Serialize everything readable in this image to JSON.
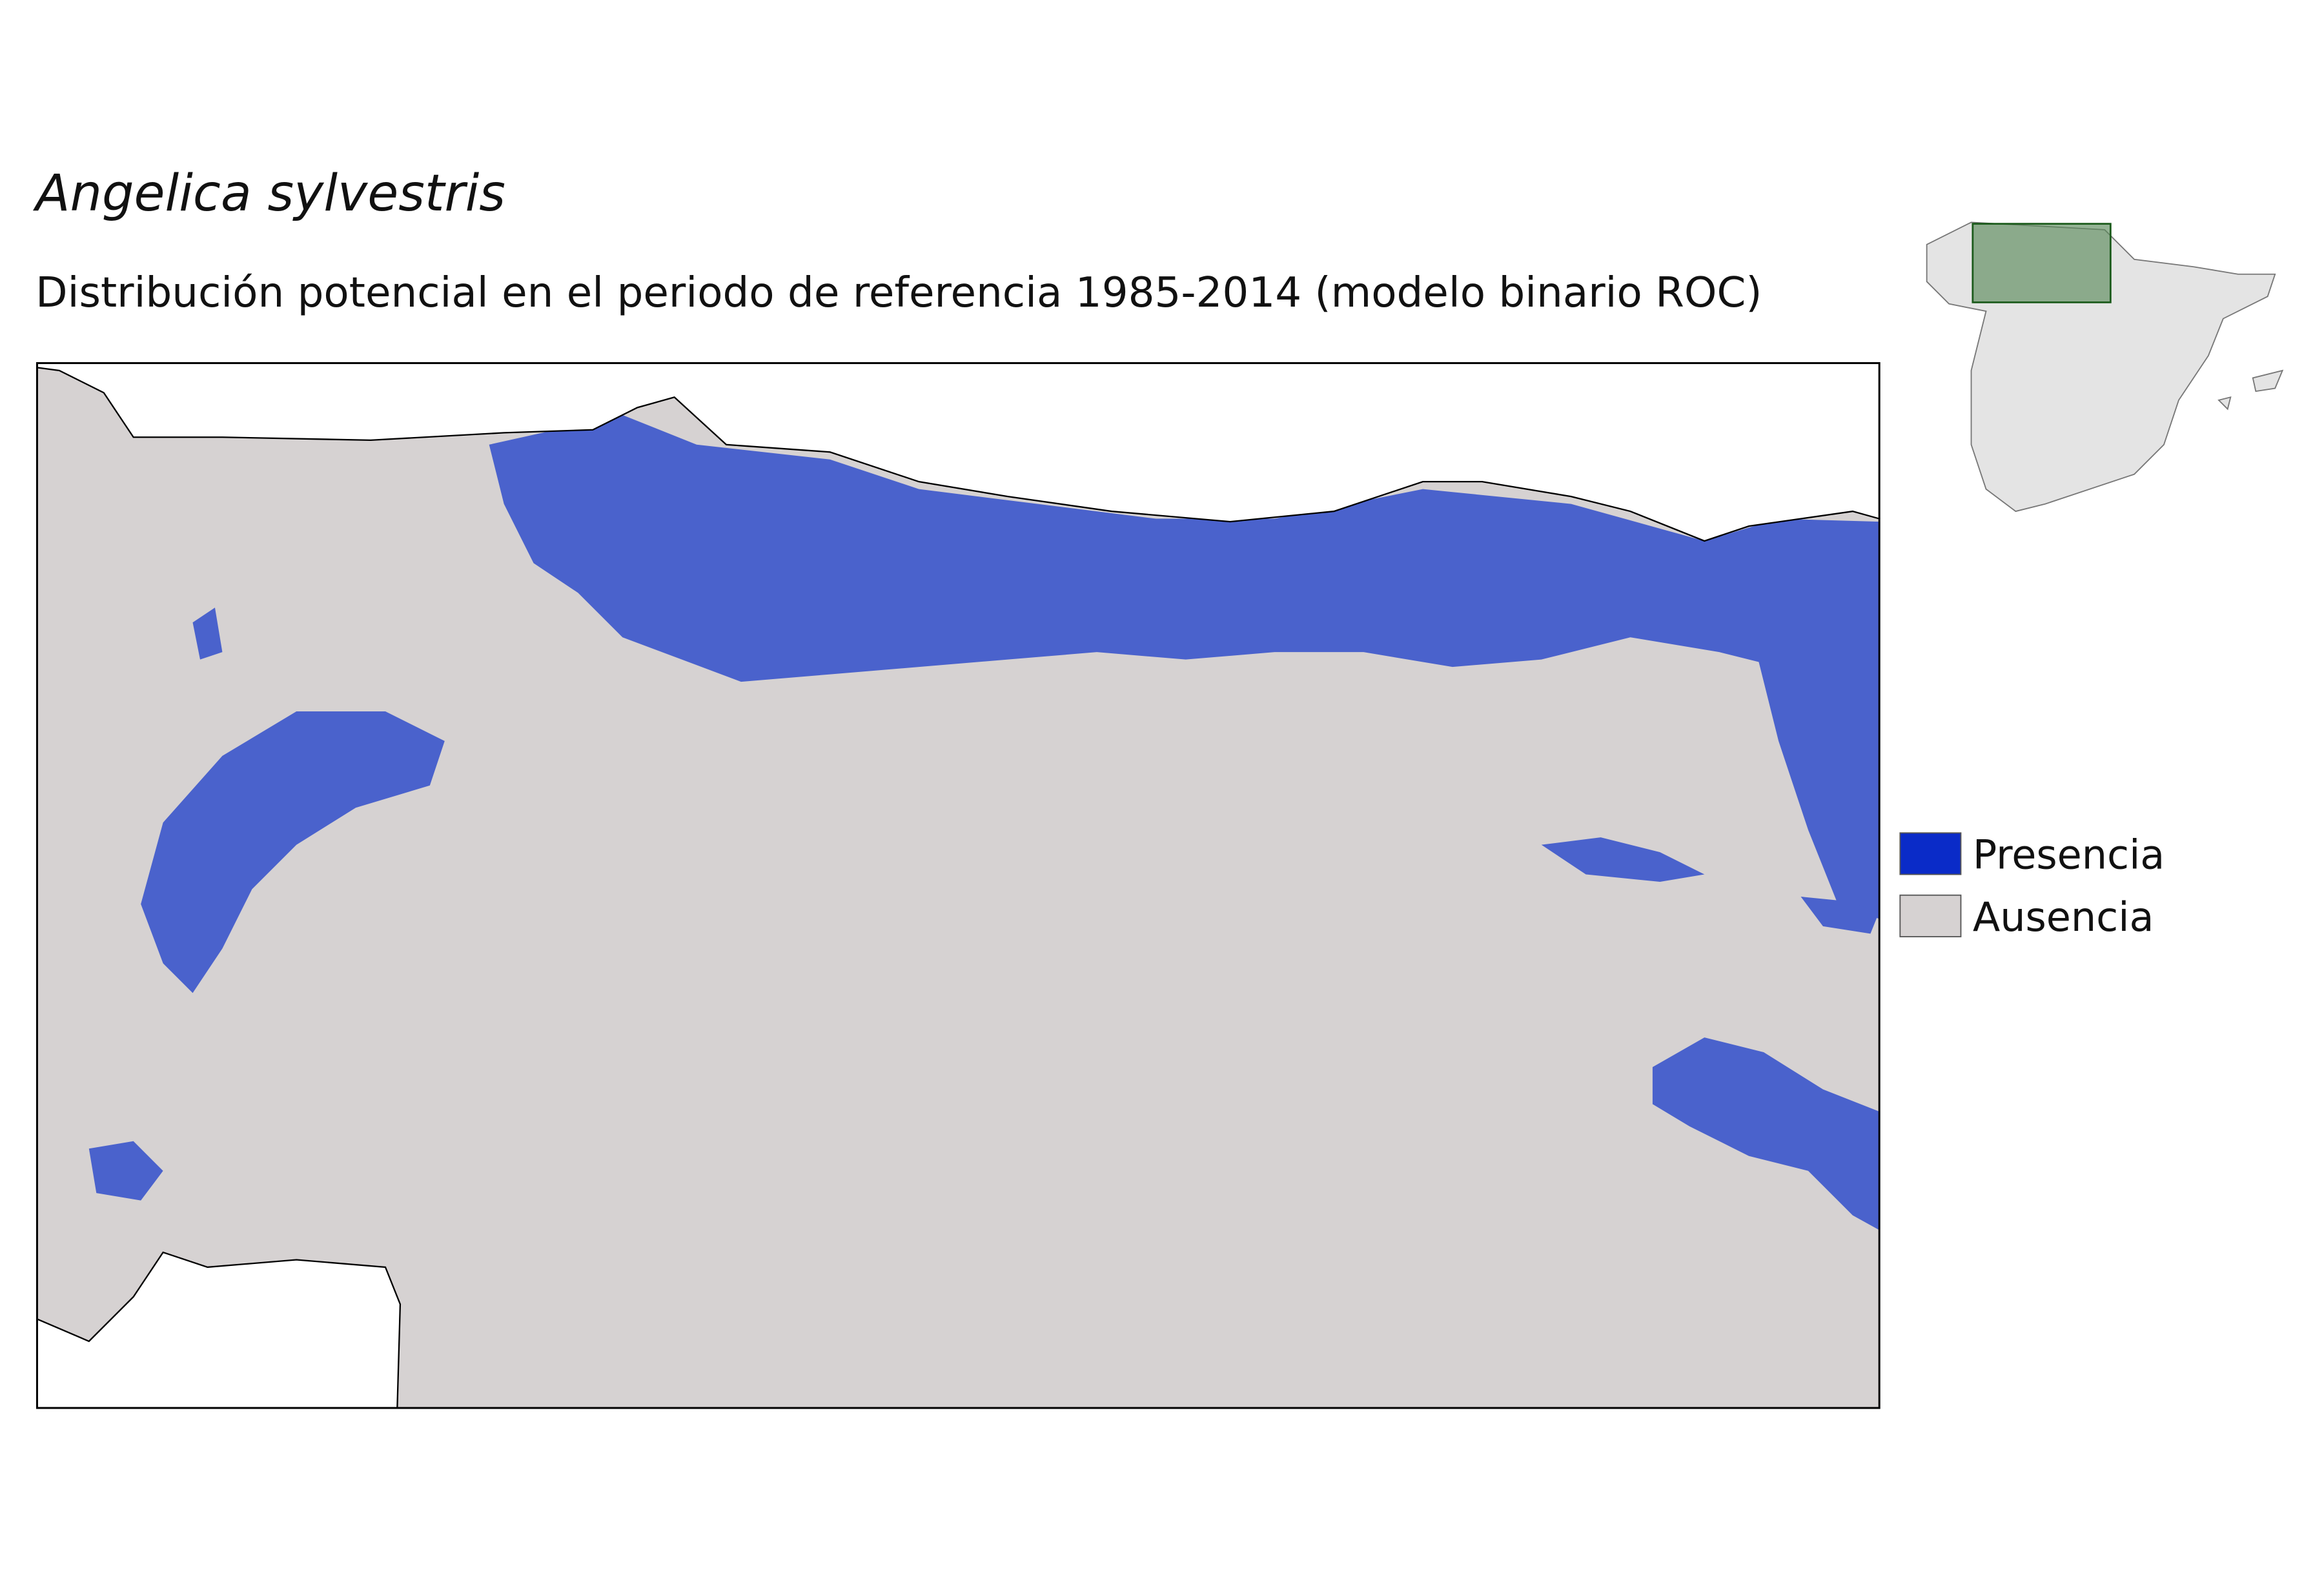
{
  "title": "Angelica sylvestris",
  "subtitle": "Distribución potencial en el periodo de referencia 1985-2014 (modelo binario ROC)",
  "legend": [
    {
      "label": "Presencia",
      "color": "#0a2bc8"
    },
    {
      "label": "Ausencia",
      "color": "#d6d2d2"
    }
  ]
}
